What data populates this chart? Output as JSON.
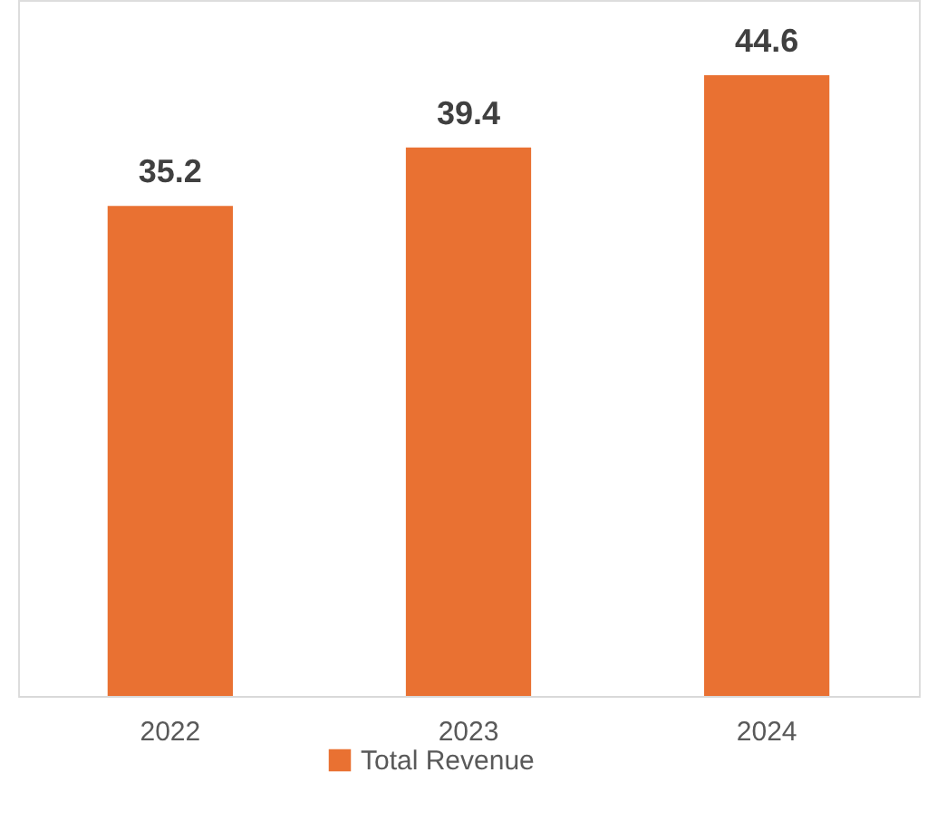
{
  "chart_data": {
    "type": "bar",
    "categories": [
      "2022",
      "2023",
      "2024"
    ],
    "series": [
      {
        "name": "Total Revenue",
        "color": "#e97132",
        "values": [
          35.2,
          39.4,
          44.6
        ]
      }
    ],
    "ylim": [
      0,
      50
    ],
    "tick_labels": "x",
    "data_labels": true,
    "legend": "bottom",
    "grid": false
  }
}
